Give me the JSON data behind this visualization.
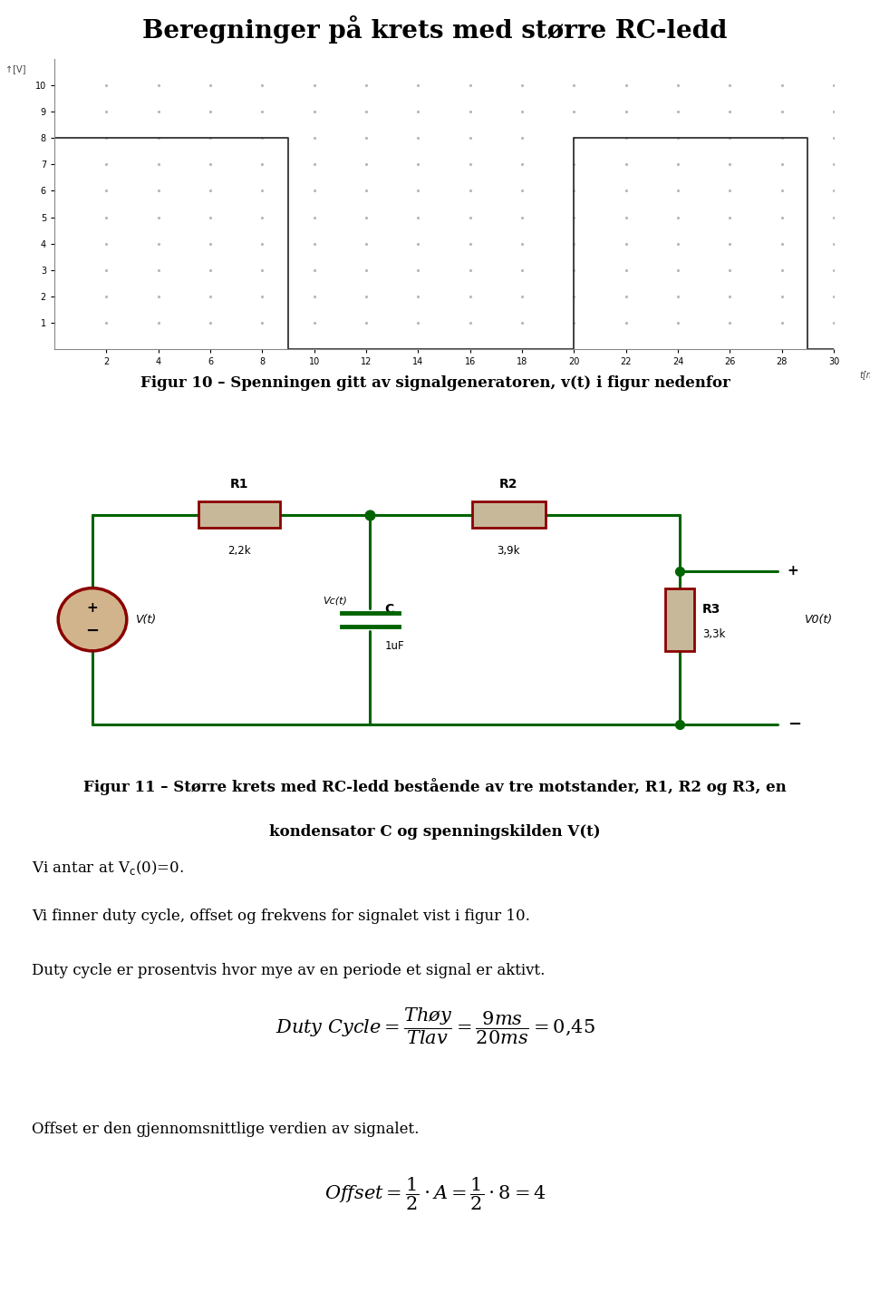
{
  "title": "Beregninger på krets med større RC-ledd",
  "title_fontsize": 20,
  "fig_width": 9.6,
  "fig_height": 14.47,
  "background_color": "#ffffff",
  "graph_caption": "Figur 10 – Spenningen gitt av signalgeneratoren, v(t) i figur nedenfor",
  "graph_caption_fontsize": 12,
  "circuit_caption": "Figur 11 – Større krets med RC-ledd bestående av tre motstander, R1, R2 og R3, en",
  "circuit_caption2": "kondensator C og spenningskilden V(t)",
  "circuit_caption_fontsize": 12,
  "text_duty1": "Vi finner duty cycle, offset og frekvens for signalet vist i figur 10.",
  "text_duty2": "Duty cycle er prosentvis hvor mye av en periode et signal er aktivt.",
  "text_offset1": "Offset er den gjennomsnittlige verdien av signalet.",
  "text_fontsize": 12,
  "formula_fontsize": 15,
  "signal_x": [
    0,
    0,
    9,
    9,
    20,
    20,
    29,
    29,
    30
  ],
  "signal_y": [
    0,
    8,
    8,
    0,
    0,
    8,
    8,
    0,
    0
  ],
  "signal_xlim": [
    0,
    30
  ],
  "signal_ylim": [
    0,
    11
  ],
  "signal_xticks": [
    2,
    4,
    6,
    8,
    10,
    12,
    14,
    16,
    18,
    20,
    22,
    24,
    26,
    28,
    30
  ],
  "signal_yticks": [
    1,
    2,
    3,
    4,
    5,
    6,
    7,
    8,
    9,
    10
  ],
  "wire_color": "#006400",
  "resistor_color": "#8B0000",
  "resistor_fill": "#C8B89A",
  "capacitor_color": "#006400",
  "source_fill": "#D2B48C",
  "source_stroke": "#8B0000",
  "dot_color": "#006400",
  "R3_color": "#8B0000",
  "R3_fill": "#C8B89A",
  "R1_label": "R1",
  "R1_val": "2,2k",
  "R2_label": "R2",
  "R2_val": "3,9k",
  "R3_label": "R3",
  "R3_val": "3,3k",
  "C_label": "C",
  "C_val": "1uF",
  "Vc_label": "Vc(t)",
  "Vs_label": "V(t)",
  "V0_label": "V0(t)"
}
